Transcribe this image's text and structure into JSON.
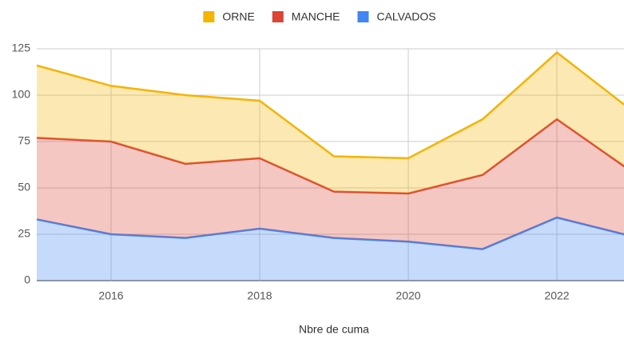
{
  "chart_data": {
    "type": "stacked_area",
    "x_label": "Nbre de cuma",
    "x": [
      2015,
      2016,
      2017,
      2018,
      2019,
      2020,
      2021,
      2022,
      2023
    ],
    "series": [
      {
        "name": "CALVADOS",
        "color": "#4285f4",
        "values": [
          33,
          25,
          23,
          28,
          23,
          21,
          17,
          34,
          24
        ]
      },
      {
        "name": "MANCHE",
        "color": "#db4437",
        "values": [
          44,
          50,
          40,
          38,
          25,
          26,
          40,
          53,
          35
        ]
      },
      {
        "name": "ORNE",
        "color": "#f4b400",
        "values": [
          39,
          30,
          37,
          31,
          19,
          19,
          30,
          36,
          33
        ]
      }
    ],
    "xlim": [
      2015,
      2023
    ],
    "xticks": [
      2016,
      2018,
      2020,
      2022
    ],
    "ylim": [
      0,
      125
    ],
    "yticks": [
      0,
      25,
      50,
      75,
      100,
      125
    ],
    "grid": true,
    "legend": "top"
  }
}
